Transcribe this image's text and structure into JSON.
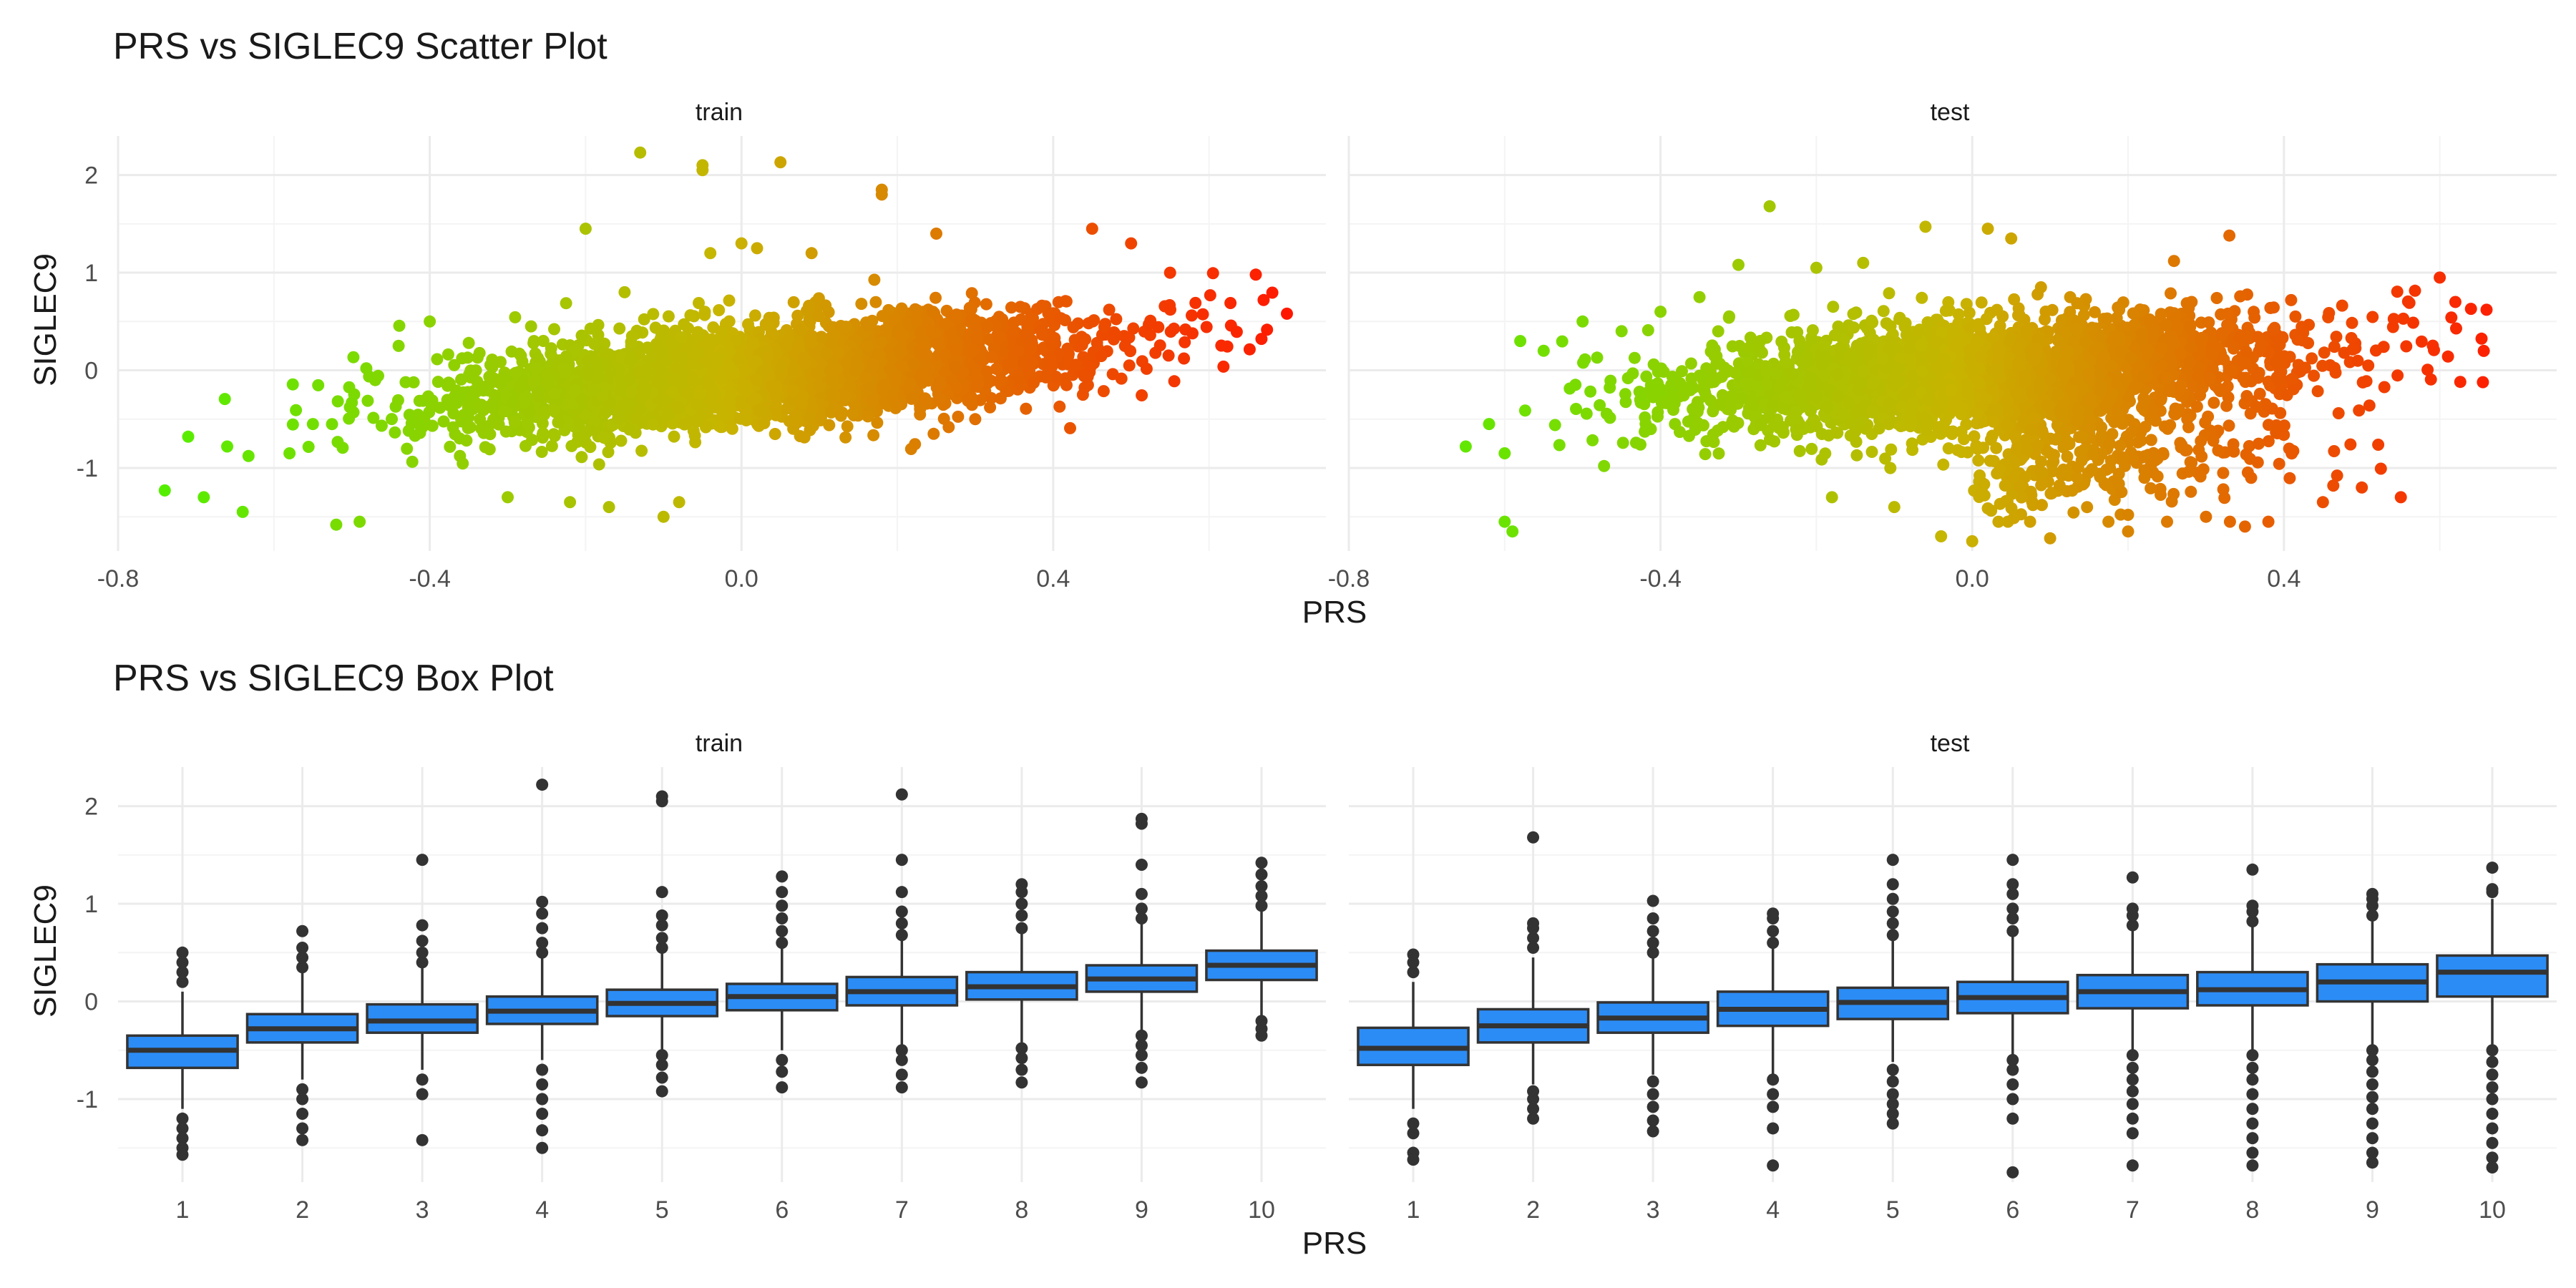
{
  "figure": {
    "panels": [
      {
        "title": "PRS vs SIGLEC9 Scatter Plot",
        "xlabel": "PRS",
        "ylabel": "SIGLEC9",
        "facets": [
          "train",
          "test"
        ],
        "x_ticks": [
          "-0.8",
          "-0.4",
          "0.0",
          "0.4"
        ],
        "y_ticks": [
          "-1",
          "0",
          "1",
          "2"
        ]
      },
      {
        "title": "PRS vs SIGLEC9 Box Plot",
        "xlabel": "PRS",
        "ylabel": "SIGLEC9",
        "facets": [
          "train",
          "test"
        ],
        "x_ticks": [
          "1",
          "2",
          "3",
          "4",
          "5",
          "6",
          "7",
          "8",
          "9",
          "10"
        ],
        "y_ticks": [
          "-1",
          "0",
          "1",
          "2"
        ]
      }
    ]
  },
  "colors": {
    "gradient_low": "#55ee00",
    "gradient_mid": "#c8b400",
    "gradient_high": "#ff1800",
    "box_fill": "#2b8cf6",
    "box_line": "#333333",
    "grid_major": "#ebebeb",
    "grid_minor": "#f4f4f4"
  },
  "chart_data": [
    {
      "type": "scatter",
      "title": "PRS vs SIGLEC9 Scatter Plot",
      "xlabel": "PRS",
      "ylabel": "SIGLEC9",
      "xlim": [
        -0.8,
        0.75
      ],
      "ylim": [
        -1.85,
        2.4
      ],
      "grid": true,
      "color_by": "PRS (green to red gradient)",
      "facets": [
        {
          "name": "train",
          "trend": {
            "slope": 1.15,
            "intercept": -0.05,
            "sd": 0.25
          },
          "x_range": [
            -0.74,
            0.7
          ],
          "points": [
            [
              -0.74,
              -1.23
            ],
            [
              -0.71,
              -0.68
            ],
            [
              -0.69,
              -1.3
            ],
            [
              -0.66,
              -0.78
            ],
            [
              -0.64,
              -1.45
            ],
            [
              -0.58,
              -0.85
            ],
            [
              -0.55,
              -0.55
            ],
            [
              -0.52,
              -1.58
            ],
            [
              -0.49,
              -1.55
            ],
            [
              -0.5,
              -0.33
            ],
            [
              -0.47,
              -0.1
            ],
            [
              -0.44,
              0.25
            ],
            [
              -0.4,
              0.5
            ],
            [
              -0.35,
              0.28
            ],
            [
              -0.3,
              -1.3
            ],
            [
              -0.27,
              0.45
            ],
            [
              -0.2,
              1.45
            ],
            [
              -0.22,
              -1.35
            ],
            [
              -0.17,
              -1.4
            ],
            [
              -0.15,
              0.8
            ],
            [
              -0.13,
              2.23
            ],
            [
              -0.1,
              -1.5
            ],
            [
              -0.08,
              -1.35
            ],
            [
              -0.05,
              2.05
            ],
            [
              -0.05,
              2.1
            ],
            [
              -0.04,
              1.2
            ],
            [
              0.0,
              1.3
            ],
            [
              0.02,
              1.25
            ],
            [
              0.05,
              2.13
            ],
            [
              0.09,
              1.2
            ],
            [
              0.18,
              1.8
            ],
            [
              0.18,
              1.85
            ],
            [
              0.25,
              1.4
            ],
            [
              0.3,
              -0.5
            ],
            [
              0.45,
              1.45
            ],
            [
              0.5,
              1.3
            ],
            [
              0.55,
              1.0
            ],
            [
              0.66,
              0.98
            ],
            [
              0.67,
              0.72
            ],
            [
              0.7,
              0.58
            ]
          ]
        },
        {
          "name": "test",
          "trend": {
            "slope": 0.95,
            "intercept": -0.05,
            "sd": 0.27
          },
          "x_range": [
            -0.65,
            0.66
          ],
          "points": [
            [
              -0.65,
              -0.78
            ],
            [
              -0.62,
              -0.55
            ],
            [
              -0.6,
              -1.55
            ],
            [
              -0.59,
              -1.65
            ],
            [
              -0.6,
              -0.85
            ],
            [
              -0.58,
              0.3
            ],
            [
              -0.55,
              0.2
            ],
            [
              -0.5,
              0.5
            ],
            [
              -0.45,
              0.4
            ],
            [
              -0.4,
              0.6
            ],
            [
              -0.35,
              0.75
            ],
            [
              -0.3,
              1.08
            ],
            [
              -0.26,
              1.68
            ],
            [
              -0.2,
              1.05
            ],
            [
              -0.18,
              -1.3
            ],
            [
              -0.14,
              1.1
            ],
            [
              -0.1,
              -1.4
            ],
            [
              -0.06,
              1.47
            ],
            [
              -0.04,
              -1.7
            ],
            [
              0.0,
              -1.75
            ],
            [
              0.02,
              1.45
            ],
            [
              0.05,
              1.35
            ],
            [
              0.1,
              -1.72
            ],
            [
              0.2,
              -1.65
            ],
            [
              0.25,
              -1.55
            ],
            [
              0.3,
              -1.5
            ],
            [
              0.33,
              1.38
            ],
            [
              0.35,
              -1.6
            ],
            [
              0.38,
              -1.55
            ],
            [
              0.45,
              -1.35
            ],
            [
              0.5,
              -1.2
            ],
            [
              0.55,
              -1.3
            ],
            [
              0.6,
              0.95
            ],
            [
              0.62,
              0.7
            ],
            [
              0.64,
              0.63
            ],
            [
              0.66,
              0.62
            ]
          ]
        }
      ]
    },
    {
      "type": "box",
      "title": "PRS vs SIGLEC9 Box Plot",
      "xlabel": "PRS",
      "ylabel": "SIGLEC9",
      "categories": [
        "1",
        "2",
        "3",
        "4",
        "5",
        "6",
        "7",
        "8",
        "9",
        "10"
      ],
      "ylim": [
        -1.85,
        2.4
      ],
      "grid": true,
      "facets": [
        {
          "name": "train",
          "boxes": [
            {
              "q1": -0.68,
              "median": -0.5,
              "q3": -0.35,
              "wlo": -1.1,
              "whi": 0.1,
              "out": [
                -1.2,
                -1.3,
                -1.4,
                -1.5,
                -1.57,
                0.2,
                0.3,
                0.4,
                0.5
              ]
            },
            {
              "q1": -0.42,
              "median": -0.28,
              "q3": -0.13,
              "wlo": -0.8,
              "whi": 0.3,
              "out": [
                -0.9,
                -1.0,
                -1.15,
                -1.3,
                -1.42,
                0.35,
                0.45,
                0.55,
                0.72
              ]
            },
            {
              "q1": -0.32,
              "median": -0.2,
              "q3": -0.03,
              "wlo": -0.7,
              "whi": 0.35,
              "out": [
                -0.8,
                -0.95,
                -1.42,
                0.4,
                0.5,
                0.62,
                0.78,
                1.45
              ]
            },
            {
              "q1": -0.23,
              "median": -0.1,
              "q3": 0.05,
              "wlo": -0.6,
              "whi": 0.45,
              "out": [
                -0.7,
                -0.85,
                -1.0,
                -1.15,
                -1.32,
                -1.5,
                0.5,
                0.6,
                0.75,
                0.9,
                1.02,
                2.22
              ]
            },
            {
              "q1": -0.15,
              "median": -0.02,
              "q3": 0.12,
              "wlo": -0.5,
              "whi": 0.5,
              "out": [
                -0.55,
                -0.65,
                -0.78,
                -0.92,
                0.55,
                0.65,
                0.78,
                0.88,
                1.12,
                2.05,
                2.1
              ]
            },
            {
              "q1": -0.09,
              "median": 0.05,
              "q3": 0.18,
              "wlo": -0.5,
              "whi": 0.55,
              "out": [
                -0.6,
                -0.72,
                -0.88,
                0.6,
                0.72,
                0.85,
                0.98,
                1.12,
                1.28
              ]
            },
            {
              "q1": -0.04,
              "median": 0.1,
              "q3": 0.25,
              "wlo": -0.45,
              "whi": 0.63,
              "out": [
                -0.5,
                -0.6,
                -0.75,
                -0.88,
                0.68,
                0.8,
                0.92,
                1.12,
                1.45,
                2.12
              ]
            },
            {
              "q1": 0.02,
              "median": 0.15,
              "q3": 0.3,
              "wlo": -0.42,
              "whi": 0.72,
              "out": [
                -0.48,
                -0.58,
                -0.7,
                -0.83,
                0.75,
                0.88,
                1.0,
                1.12,
                1.2
              ]
            },
            {
              "q1": 0.1,
              "median": 0.23,
              "q3": 0.37,
              "wlo": -0.3,
              "whi": 0.8,
              "out": [
                -0.35,
                -0.45,
                -0.55,
                -0.68,
                -0.83,
                0.85,
                0.95,
                1.1,
                1.4,
                1.82,
                1.87
              ]
            },
            {
              "q1": 0.22,
              "median": 0.37,
              "q3": 0.52,
              "wlo": -0.15,
              "whi": 0.92,
              "out": [
                -0.2,
                -0.28,
                -0.35,
                0.98,
                1.08,
                1.18,
                1.3,
                1.42
              ]
            }
          ]
        },
        {
          "name": "test",
          "boxes": [
            {
              "q1": -0.65,
              "median": -0.48,
              "q3": -0.27,
              "wlo": -1.1,
              "whi": 0.2,
              "out": [
                -1.25,
                -1.35,
                -1.55,
                -1.62,
                0.3,
                0.4,
                0.48
              ]
            },
            {
              "q1": -0.42,
              "median": -0.25,
              "q3": -0.08,
              "wlo": -0.85,
              "whi": 0.45,
              "out": [
                -0.92,
                -1.0,
                -1.1,
                -1.2,
                0.55,
                0.65,
                0.75,
                0.8,
                1.68
              ]
            },
            {
              "q1": -0.32,
              "median": -0.17,
              "q3": -0.01,
              "wlo": -0.75,
              "whi": 0.45,
              "out": [
                -0.82,
                -0.95,
                -1.08,
                -1.22,
                -1.33,
                0.5,
                0.6,
                0.72,
                0.85,
                1.03
              ]
            },
            {
              "q1": -0.25,
              "median": -0.08,
              "q3": 0.1,
              "wlo": -0.75,
              "whi": 0.55,
              "out": [
                -0.8,
                -0.95,
                -1.08,
                -1.3,
                -1.68,
                0.6,
                0.72,
                0.85,
                0.9
              ]
            },
            {
              "q1": -0.18,
              "median": -0.01,
              "q3": 0.14,
              "wlo": -0.62,
              "whi": 0.62,
              "out": [
                -0.7,
                -0.82,
                -0.95,
                -1.05,
                -1.15,
                -1.25,
                0.68,
                0.8,
                0.92,
                1.05,
                1.2,
                1.45
              ]
            },
            {
              "q1": -0.12,
              "median": 0.04,
              "q3": 0.2,
              "wlo": -0.55,
              "whi": 0.68,
              "out": [
                -0.6,
                -0.7,
                -0.85,
                -1.0,
                -1.2,
                -1.75,
                0.72,
                0.85,
                0.95,
                1.1,
                1.2,
                1.45
              ]
            },
            {
              "q1": -0.07,
              "median": 0.1,
              "q3": 0.27,
              "wlo": -0.5,
              "whi": 0.72,
              "out": [
                -0.55,
                -0.68,
                -0.8,
                -0.92,
                -1.05,
                -1.2,
                -1.35,
                -1.68,
                0.78,
                0.88,
                0.95,
                1.27
              ]
            },
            {
              "q1": -0.04,
              "median": 0.12,
              "q3": 0.3,
              "wlo": -0.5,
              "whi": 0.78,
              "out": [
                -0.55,
                -0.68,
                -0.8,
                -0.95,
                -1.1,
                -1.25,
                -1.4,
                -1.55,
                -1.68,
                0.82,
                0.92,
                0.98,
                1.35
              ]
            },
            {
              "q1": 0.0,
              "median": 0.2,
              "q3": 0.38,
              "wlo": -0.45,
              "whi": 0.85,
              "out": [
                -0.5,
                -0.6,
                -0.72,
                -0.85,
                -0.98,
                -1.1,
                -1.25,
                -1.4,
                -1.55,
                -1.65,
                0.88,
                0.98,
                1.05,
                1.1
              ]
            },
            {
              "q1": 0.05,
              "median": 0.3,
              "q3": 0.47,
              "wlo": -0.45,
              "whi": 1.05,
              "out": [
                -0.5,
                -0.62,
                -0.75,
                -0.88,
                -1.0,
                -1.15,
                -1.3,
                -1.45,
                -1.6,
                -1.7,
                1.12,
                1.15,
                1.37
              ]
            }
          ]
        }
      ]
    }
  ]
}
